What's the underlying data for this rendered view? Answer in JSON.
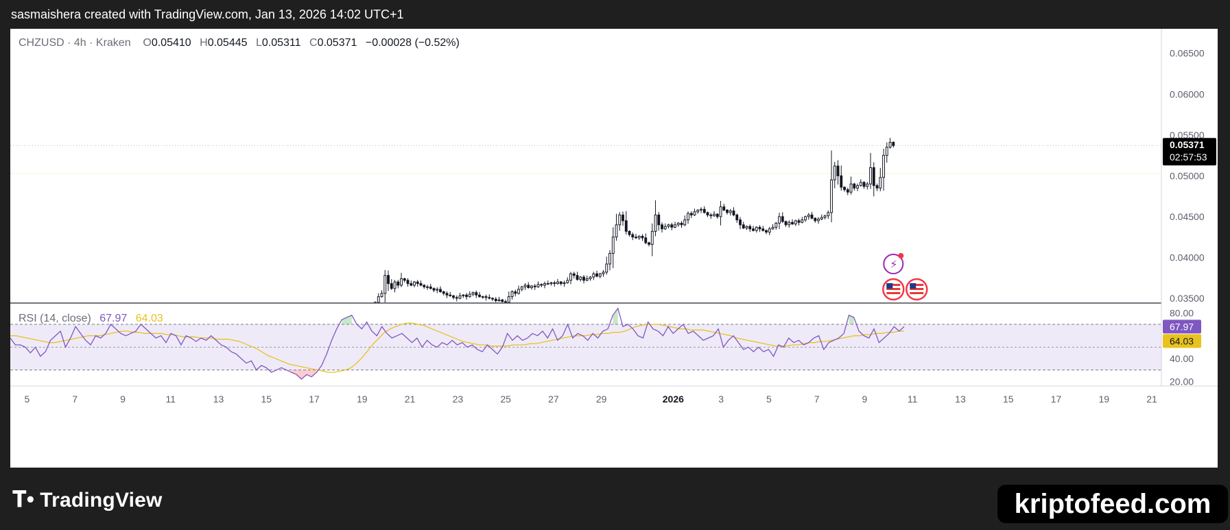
{
  "caption": "sasmaishera created with TradingView.com, Jan 13, 2026 14:02 UTC+1",
  "legend": {
    "symbol": "CHZUSD · 4h · Kraken",
    "open_label": "O",
    "open": "0.05410",
    "high_label": "H",
    "high": "0.05445",
    "low_label": "L",
    "low": "0.05311",
    "close_label": "C",
    "close": "0.05371",
    "change": "−0.00028 (−0.52%)"
  },
  "price_tag": {
    "price": "0.05371",
    "countdown": "02:57:53"
  },
  "rsi": {
    "label": "RSI (14, close)",
    "value": "67.97",
    "ma": "64.03"
  },
  "brand": {
    "logo_text": "TradingView",
    "watermark": "kriptofeed.com"
  },
  "colors": {
    "background": "#1f1f1f",
    "pane": "#ffffff",
    "rsi_line": "#7e57c2",
    "rsi_ma": "#e8c21e",
    "band_fill": "#efeaf8",
    "candle": "#131722"
  },
  "chart_data": [
    {
      "type": "candlestick",
      "ylim": [
        0.0345,
        0.068
      ],
      "y_ticks": [
        "0.06500",
        "0.06000",
        "0.05500",
        "0.05000",
        "0.04500",
        "0.04000",
        "0.03500"
      ],
      "y_tick_values": [
        0.065,
        0.06,
        0.055,
        0.05,
        0.045,
        0.04,
        0.035
      ],
      "x_ticks": [
        "5",
        "7",
        "9",
        "11",
        "13",
        "15",
        "17",
        "19",
        "21",
        "23",
        "25",
        "27",
        "29",
        "2026",
        "3",
        "5",
        "7",
        "9",
        "11",
        "13",
        "15",
        "17",
        "19",
        "21"
      ],
      "x_tick_days": [
        5,
        7,
        9,
        11,
        13,
        15,
        17,
        19,
        21,
        23,
        25,
        27,
        29,
        32,
        34,
        36,
        38,
        40,
        42,
        44,
        46,
        48,
        50,
        52
      ],
      "x_start_day": 4.3,
      "x_end_day": 52.4,
      "candle_days": [
        19.55,
        41.2
      ],
      "closes": [
        0.0345,
        0.0352,
        0.0356,
        0.0378,
        0.0368,
        0.0362,
        0.037,
        0.0366,
        0.0374,
        0.0372,
        0.0368,
        0.0366,
        0.037,
        0.0368,
        0.0366,
        0.0364,
        0.0364,
        0.0362,
        0.036,
        0.0361,
        0.0358,
        0.0356,
        0.0354,
        0.0353,
        0.0351,
        0.035,
        0.0353,
        0.0354,
        0.0352,
        0.0355,
        0.0357,
        0.0354,
        0.0352,
        0.0352,
        0.0351,
        0.035,
        0.0349,
        0.0347,
        0.0348,
        0.0346,
        0.0345,
        0.0352,
        0.0358,
        0.0356,
        0.0361,
        0.0364,
        0.0366,
        0.0363,
        0.0365,
        0.0364,
        0.0367,
        0.0366,
        0.0368,
        0.0368,
        0.0369,
        0.0368,
        0.037,
        0.0368,
        0.0369,
        0.0372,
        0.038,
        0.0378,
        0.0373,
        0.0376,
        0.0372,
        0.0374,
        0.0376,
        0.038,
        0.0377,
        0.038,
        0.0382,
        0.0392,
        0.0405,
        0.0425,
        0.044,
        0.0452,
        0.0445,
        0.0432,
        0.0428,
        0.0425,
        0.0424,
        0.0426,
        0.0424,
        0.0418,
        0.0416,
        0.0432,
        0.0452,
        0.044,
        0.0435,
        0.0438,
        0.044,
        0.0437,
        0.044,
        0.0442,
        0.044,
        0.0446,
        0.0454,
        0.0452,
        0.0456,
        0.0458,
        0.0459,
        0.0455,
        0.0452,
        0.0451,
        0.0453,
        0.045,
        0.0462,
        0.0458,
        0.0455,
        0.0457,
        0.0452,
        0.0446,
        0.044,
        0.0436,
        0.0438,
        0.0435,
        0.0433,
        0.0437,
        0.0435,
        0.0433,
        0.0431,
        0.0435,
        0.0437,
        0.0442,
        0.045,
        0.0444,
        0.044,
        0.0443,
        0.0441,
        0.0445,
        0.0443,
        0.0446,
        0.045,
        0.0452,
        0.0448,
        0.0445,
        0.0447,
        0.0449,
        0.0451,
        0.0455,
        0.0495,
        0.0512,
        0.05,
        0.0486,
        0.0483,
        0.048,
        0.049,
        0.0485,
        0.0488,
        0.0492,
        0.0487,
        0.049,
        0.051,
        0.0488,
        0.0485,
        0.0498,
        0.0525,
        0.0535,
        0.0541,
        0.0537
      ],
      "last_price": 0.05371,
      "dotted_price": 0.05371,
      "horizontal_level": 0.0503,
      "event_markers": [
        "flash",
        "us-flag",
        "us-flag"
      ]
    },
    {
      "type": "line",
      "name": "RSI (14, close)",
      "ylim": [
        16,
        88
      ],
      "y_ticks": [
        "80.00",
        "40.00",
        "20.00"
      ],
      "y_tick_values": [
        80,
        40,
        20
      ],
      "bands": [
        70,
        50,
        30
      ],
      "x_start_day": 4.3,
      "x_end_day": 41.65,
      "rsi": [
        58,
        52,
        52,
        50,
        45,
        50,
        42,
        46,
        56,
        60,
        64,
        50,
        58,
        68,
        62,
        56,
        52,
        60,
        58,
        62,
        70,
        66,
        62,
        60,
        62,
        64,
        70,
        66,
        62,
        58,
        60,
        54,
        62,
        60,
        52,
        60,
        58,
        55,
        58,
        56,
        60,
        56,
        52,
        50,
        46,
        44,
        40,
        36,
        38,
        30,
        34,
        32,
        28,
        30,
        32,
        30,
        28,
        26,
        22,
        26,
        24,
        28,
        34,
        44,
        56,
        66,
        74,
        76,
        78,
        70,
        66,
        72,
        64,
        60,
        68,
        62,
        58,
        60,
        62,
        58,
        54,
        58,
        50,
        56,
        52,
        50,
        54,
        52,
        56,
        52,
        54,
        50,
        52,
        48,
        46,
        52,
        48,
        44,
        50,
        62,
        56,
        60,
        56,
        58,
        62,
        60,
        64,
        58,
        66,
        56,
        60,
        70,
        58,
        62,
        60,
        56,
        62,
        58,
        64,
        66,
        78,
        84,
        68,
        70,
        66,
        60,
        58,
        72,
        66,
        64,
        60,
        68,
        62,
        66,
        70,
        62,
        64,
        60,
        56,
        58,
        60,
        66,
        50,
        56,
        60,
        54,
        48,
        50,
        46,
        50,
        46,
        48,
        42,
        52,
        50,
        58,
        54,
        56,
        52,
        54,
        58,
        60,
        48,
        54,
        56,
        58,
        62,
        78,
        76,
        64,
        60,
        58,
        66,
        54,
        58,
        62,
        68,
        64,
        67.97
      ],
      "ma": [
        60,
        60,
        59,
        58,
        57,
        56,
        55,
        54,
        54,
        55,
        56,
        57,
        58,
        59,
        60,
        60,
        60,
        61,
        62,
        63,
        64,
        64,
        63,
        63,
        62,
        62,
        62,
        62,
        61,
        61,
        60,
        59,
        59,
        59,
        58,
        58,
        58,
        57,
        57,
        57,
        56,
        55,
        53,
        51,
        49,
        46,
        43,
        41,
        39,
        37,
        35,
        34,
        33,
        32,
        31,
        30,
        29,
        28,
        28,
        29,
        30,
        32,
        36,
        41,
        47,
        53,
        58,
        63,
        66,
        68,
        70,
        71,
        71,
        70,
        69,
        67,
        65,
        63,
        61,
        59,
        57,
        55,
        54,
        53,
        52,
        52,
        51,
        51,
        51,
        51,
        52,
        52,
        52,
        53,
        53,
        54,
        55,
        56,
        57,
        58,
        59,
        60,
        60,
        60,
        61,
        61,
        62,
        62,
        63,
        63,
        64,
        66,
        68,
        69,
        70,
        70,
        70,
        69,
        68,
        67,
        66,
        66,
        65,
        65,
        65,
        64,
        63,
        62,
        61,
        60,
        58,
        57,
        56,
        55,
        54,
        53,
        52,
        51,
        51,
        51,
        52,
        52,
        53,
        54,
        54,
        55,
        55,
        56,
        57,
        58,
        59,
        60,
        60,
        61,
        61,
        62,
        62,
        63,
        63,
        64,
        64.03
      ],
      "last_rsi": 67.97,
      "last_ma": 64.03
    }
  ]
}
